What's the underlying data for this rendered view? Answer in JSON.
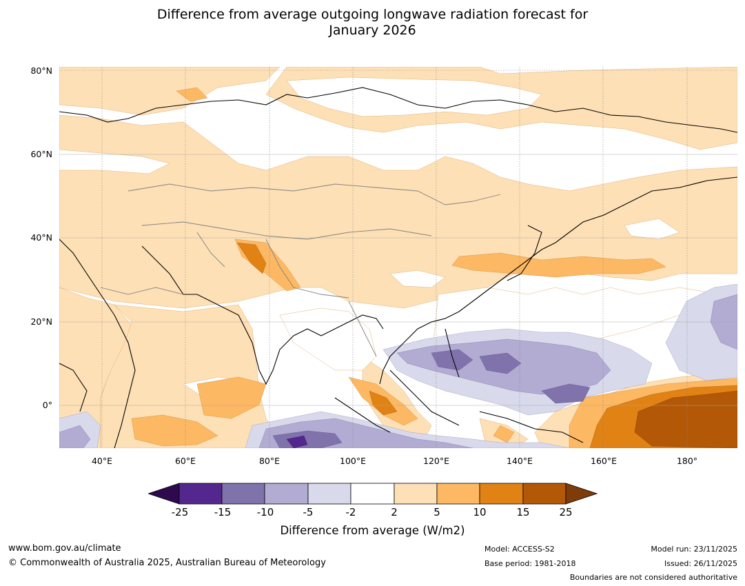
{
  "title_line1": "Difference from average outgoing longwave radiation forecast for",
  "title_line2": "January 2026",
  "lat_labels": [
    "80°N",
    "60°N",
    "40°N",
    "20°N",
    "0°"
  ],
  "lon_labels": [
    "40°E",
    "60°E",
    "80°E",
    "100°E",
    "120°E",
    "140°E",
    "160°E",
    "180°"
  ],
  "colorbar": {
    "ticks": [
      "-25",
      "-15",
      "-10",
      "-5",
      "-2",
      "2",
      "5",
      "10",
      "15",
      "25"
    ],
    "colors": {
      "under": "#2d0a4e",
      "b1": "#54278f",
      "b2": "#8073ac",
      "b3": "#b2abd2",
      "b4": "#d8daeb",
      "b5": "#ffffff",
      "b6": "#fee0b6",
      "b7": "#fdb863",
      "b8": "#e08214",
      "b9": "#b35806",
      "over": "#7f3b08"
    },
    "label": "Difference from average (W/m2)"
  },
  "footer": {
    "url": "www.bom.gov.au/climate",
    "copyright": "© Commonwealth of Australia 2025, Australian Bureau of Meteorology",
    "model": "Model: ACCESS-S2",
    "base_period": "Base period: 1981-2018",
    "model_run": "Model run: 23/11/2025",
    "issued": "Issued: 26/11/2025",
    "disclaimer": "Boundaries are not considered authoritative"
  }
}
